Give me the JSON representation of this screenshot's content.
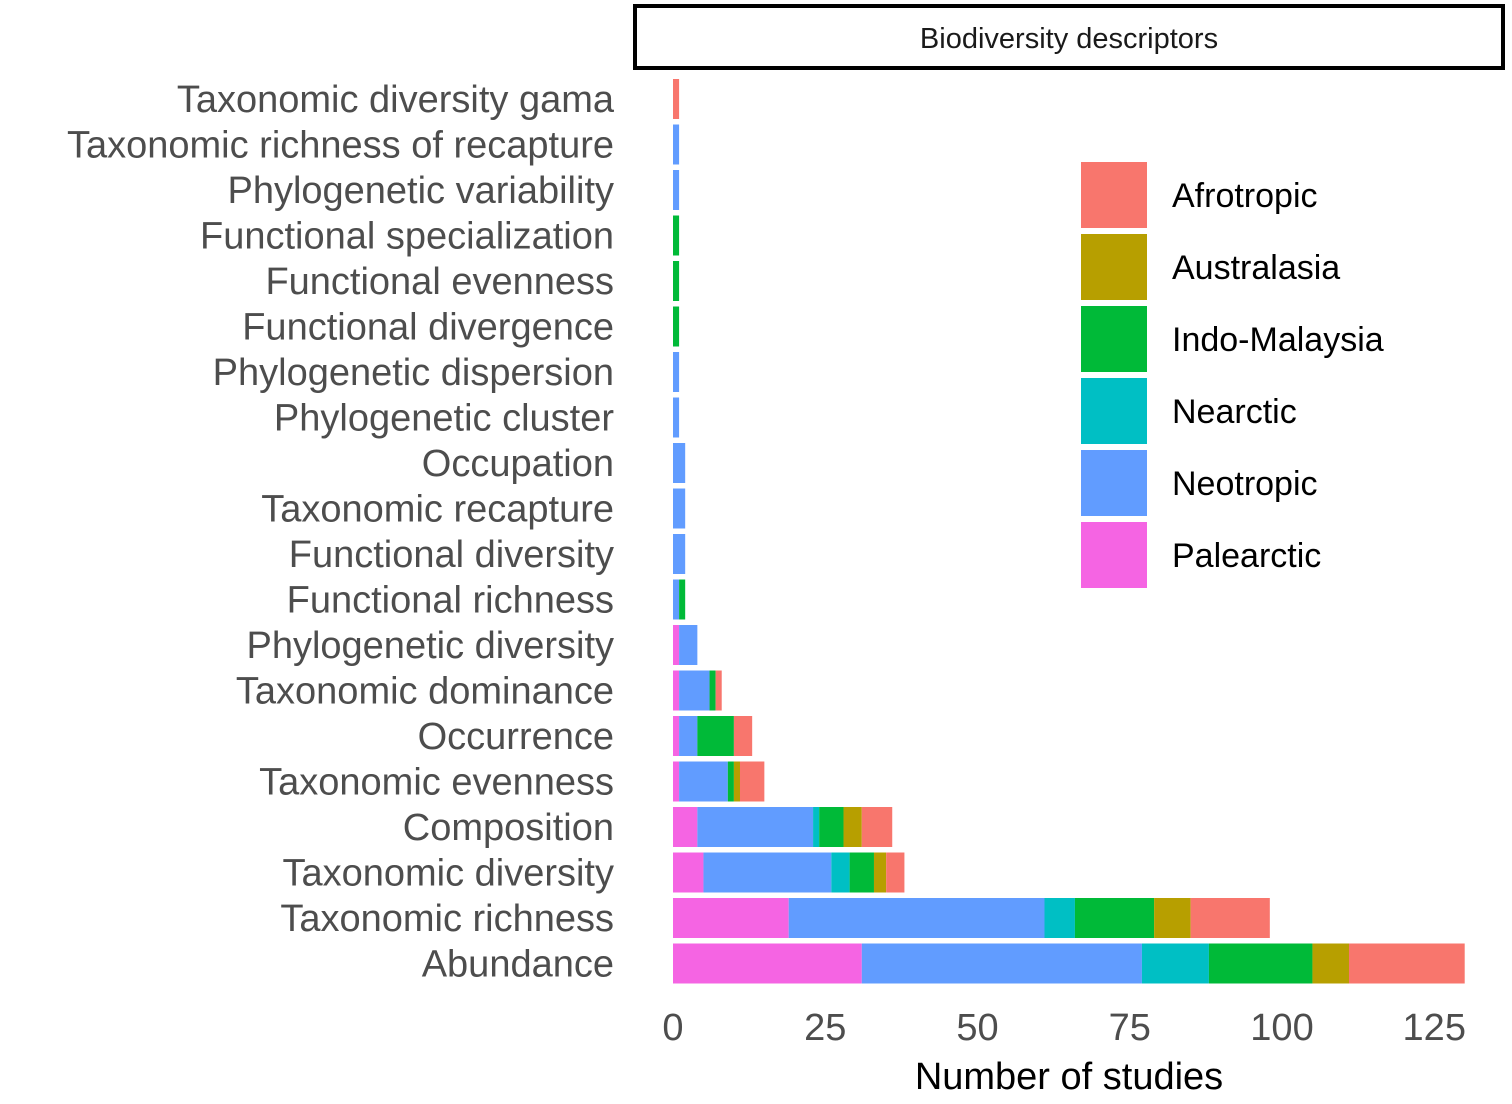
{
  "chart_data": {
    "type": "bar",
    "orientation": "horizontal",
    "stacked": true,
    "title": "",
    "facet_label": "Biodiversity descriptors",
    "xlabel": "Number of studies",
    "ylabel": "",
    "xlim": [
      0,
      130
    ],
    "xticks": [
      0,
      25,
      50,
      75,
      100,
      125
    ],
    "grid": false,
    "legend_position": "right",
    "categories": [
      "Taxonomic diversity gama",
      "Taxonomic richness of recapture",
      "Phylogenetic variability",
      "Functional specialization",
      "Functional evenness",
      "Functional divergence",
      "Phylogenetic dispersion",
      "Phylogenetic cluster",
      "Occupation",
      "Taxonomic recapture",
      "Functional diversity",
      "Functional richness",
      "Phylogenetic diversity",
      "Taxonomic dominance",
      "Occurrence",
      "Taxonomic evenness",
      "Composition",
      "Taxonomic diversity",
      "Taxonomic richness",
      "Abundance"
    ],
    "stack_order": [
      "Palearctic",
      "Neotropic",
      "Nearctic",
      "Indo-Malaysia",
      "Australasia",
      "Afrotropic"
    ],
    "series": [
      {
        "name": "Afrotropic",
        "color": "#F8766D",
        "values": [
          1,
          0,
          0,
          0,
          0,
          0,
          0,
          0,
          0,
          0,
          0,
          0,
          0,
          1,
          3,
          4,
          5,
          3,
          13,
          19
        ]
      },
      {
        "name": "Australasia",
        "color": "#B79F00",
        "values": [
          0,
          0,
          0,
          0,
          0,
          0,
          0,
          0,
          0,
          0,
          0,
          0,
          0,
          0,
          0,
          1,
          3,
          2,
          6,
          6
        ]
      },
      {
        "name": "Indo-Malaysia",
        "color": "#00BA38",
        "values": [
          0,
          0,
          0,
          1,
          1,
          1,
          0,
          0,
          0,
          0,
          0,
          1,
          0,
          1,
          6,
          1,
          4,
          4,
          13,
          17
        ]
      },
      {
        "name": "Nearctic",
        "color": "#00BFC4",
        "values": [
          0,
          0,
          0,
          0,
          0,
          0,
          0,
          0,
          0,
          0,
          0,
          0,
          0,
          0,
          0,
          0,
          1,
          3,
          5,
          11
        ]
      },
      {
        "name": "Neotropic",
        "color": "#619CFF",
        "values": [
          0,
          1,
          1,
          0,
          0,
          0,
          1,
          1,
          2,
          2,
          2,
          1,
          3,
          5,
          3,
          8,
          19,
          21,
          42,
          46
        ]
      },
      {
        "name": "Palearctic",
        "color": "#F564E3",
        "values": [
          0,
          0,
          0,
          0,
          0,
          0,
          0,
          0,
          0,
          0,
          0,
          0,
          1,
          1,
          1,
          1,
          4,
          5,
          19,
          31
        ]
      }
    ]
  }
}
